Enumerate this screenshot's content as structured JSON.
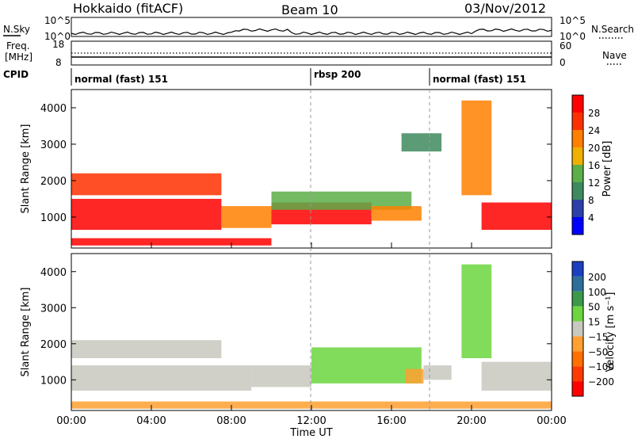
{
  "header": {
    "station": "Hokkaido (fitACF)",
    "beam": "Beam 10",
    "date": "03/Nov/2012"
  },
  "sky_panel": {
    "left_label": "N.Sky",
    "right_label": "N.Search",
    "left_ticks": [
      "10^5",
      "10^0"
    ],
    "right_ticks": [
      "10^5",
      "10^0"
    ]
  },
  "freq_panel": {
    "left_label_top": "Freq.",
    "left_label_unit": "[MHz]",
    "left_ticks": [
      "18",
      "8"
    ],
    "right_label": "Nave",
    "right_ticks": [
      "60",
      "0"
    ]
  },
  "cpid_panel": {
    "label": "CPID",
    "modes": [
      "normal (fast) 151",
      "rbsp 200",
      "normal (fast) 151"
    ]
  },
  "power_panel": {
    "ylabel": "Slant Range [km]",
    "yticks": [
      "4000",
      "3000",
      "2000",
      "1000"
    ],
    "colorbar_label": "Power [dB]",
    "colorbar_ticks": [
      "28",
      "24",
      "20",
      "16",
      "12",
      "8",
      "4"
    ],
    "colors": [
      "#0000ff",
      "#2d3fa8",
      "#3e8a5e",
      "#5cae48",
      "#f0b000",
      "#ff8000",
      "#ff3000",
      "#ff0000"
    ]
  },
  "velocity_panel": {
    "ylabel": "Slant Range [km]",
    "yticks": [
      "4000",
      "3000",
      "2000",
      "1000"
    ],
    "colorbar_label": "Velocity [m s⁻¹]",
    "colorbar_ticks": [
      "200",
      "100",
      "50",
      "15",
      "−15",
      "−50",
      "−100",
      "−200"
    ],
    "colors": [
      "#1a3fc0",
      "#2e6e9a",
      "#3a9a4a",
      "#6cd640",
      "#c8c8c0",
      "#ffa030",
      "#ff7000",
      "#ff3a00",
      "#ff0000"
    ]
  },
  "xaxis": {
    "ticks": [
      "00:00",
      "04:00",
      "08:00",
      "12:00",
      "16:00",
      "20:00",
      "00:00"
    ],
    "label": "Time UT"
  },
  "chart_data": {
    "type": "heatmap",
    "x_ticks": [
      "00:00",
      "04:00",
      "08:00",
      "12:00",
      "16:00",
      "20:00",
      "00:00"
    ],
    "xlabel": "Time UT",
    "ylabel": "Slant Range [km]",
    "y_ticks": [
      1000,
      2000,
      3000,
      4000
    ],
    "cpid_switch_hours": [
      12,
      18
    ],
    "series": [
      {
        "name": "Power [dB]",
        "colorbar": [
          4,
          8,
          12,
          16,
          20,
          24,
          28
        ],
        "regions": [
          {
            "t0": 0,
            "t1": 7.5,
            "r0": 650,
            "r1": 1500,
            "v": 28
          },
          {
            "t0": 0,
            "t1": 7.5,
            "r0": 1600,
            "r1": 2200,
            "v": 26
          },
          {
            "t0": 7.5,
            "t1": 10,
            "r0": 700,
            "r1": 1300,
            "v": 20
          },
          {
            "t0": 10,
            "t1": 15,
            "r0": 800,
            "r1": 1400,
            "v": 28
          },
          {
            "t0": 10,
            "t1": 17,
            "r0": 1200,
            "r1": 1700,
            "v": 12
          },
          {
            "t0": 15,
            "t1": 17.5,
            "r0": 900,
            "r1": 1300,
            "v": 20
          },
          {
            "t0": 16.5,
            "t1": 18.5,
            "r0": 2800,
            "r1": 3300,
            "v": 8
          },
          {
            "t0": 19.5,
            "t1": 21,
            "r0": 1600,
            "r1": 4200,
            "v": 22
          },
          {
            "t0": 20.5,
            "t1": 24,
            "r0": 650,
            "r1": 1400,
            "v": 28
          },
          {
            "t0": 0,
            "t1": 10,
            "r0": 220,
            "r1": 420,
            "v": 28
          }
        ]
      },
      {
        "name": "Velocity [m s⁻¹]",
        "colorbar": [
          -200,
          -100,
          -50,
          -15,
          15,
          50,
          100,
          200
        ],
        "regions": [
          {
            "t0": 0,
            "t1": 9,
            "r0": 700,
            "r1": 1400,
            "v": 0
          },
          {
            "t0": 0,
            "t1": 7.5,
            "r0": 1600,
            "r1": 2100,
            "v": 0
          },
          {
            "t0": 9,
            "t1": 12,
            "r0": 800,
            "r1": 1400,
            "v": 0
          },
          {
            "t0": 12,
            "t1": 17.5,
            "r0": 900,
            "r1": 1900,
            "v": 40
          },
          {
            "t0": 16.7,
            "t1": 17.6,
            "r0": 900,
            "r1": 1300,
            "v": -40
          },
          {
            "t0": 17.6,
            "t1": 19,
            "r0": 1000,
            "r1": 1400,
            "v": 0
          },
          {
            "t0": 19.5,
            "t1": 21,
            "r0": 1600,
            "r1": 4200,
            "v": 30
          },
          {
            "t0": 20.5,
            "t1": 24,
            "r0": 700,
            "r1": 1500,
            "v": 0
          },
          {
            "t0": 0,
            "t1": 24,
            "r0": 200,
            "r1": 400,
            "v": -40
          }
        ]
      }
    ]
  }
}
